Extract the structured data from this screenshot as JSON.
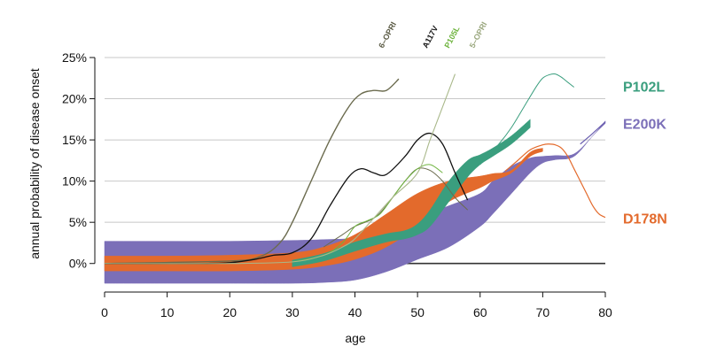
{
  "chart_data": {
    "type": "area",
    "ylabel": "annual probability of disease onset",
    "xlabel": "age",
    "xlim": [
      0,
      80
    ],
    "ylim": [
      -2.5,
      25
    ],
    "x_ticks": [
      0,
      10,
      20,
      30,
      40,
      50,
      60,
      70,
      80
    ],
    "x_tick_labels": [
      "0",
      "10",
      "20",
      "30",
      "40",
      "50",
      "60",
      "70",
      "80"
    ],
    "y_ticks": [
      0,
      5,
      10,
      15,
      20,
      25
    ],
    "y_tick_labels": [
      "0%",
      "5%",
      "10%",
      "15%",
      "20%",
      "25%"
    ],
    "grid": "horizontal",
    "bands": [
      {
        "name": "E200K",
        "color": "#7b6fb8",
        "x": [
          0,
          10,
          20,
          30,
          35,
          40,
          45,
          50,
          55,
          60,
          62,
          65,
          68,
          70,
          72,
          75,
          78,
          80
        ],
        "lower": [
          -2.4,
          -2.4,
          -2.4,
          -2.4,
          -2.3,
          -2.0,
          -1.0,
          0.5,
          2.0,
          4.5,
          6.0,
          8.5,
          11.0,
          12.2,
          12.6,
          13.0,
          15.5,
          17.0
        ],
        "upper": [
          2.7,
          2.7,
          2.7,
          2.8,
          2.9,
          3.1,
          4.0,
          5.5,
          7.0,
          8.5,
          10.0,
          11.8,
          12.8,
          13.0,
          13.1,
          13.3,
          15.5,
          17.3
        ]
      },
      {
        "name": "D178N",
        "color": "#e36a2c",
        "x": [
          0,
          10,
          20,
          30,
          35,
          40,
          45,
          50,
          55,
          60,
          62,
          65,
          68,
          70
        ],
        "lower": [
          -0.9,
          -0.9,
          -0.9,
          -0.7,
          -0.3,
          0.5,
          2.0,
          4.5,
          7.5,
          9.2,
          10.0,
          11.0,
          13.0,
          13.6
        ],
        "upper": [
          0.9,
          0.9,
          1.0,
          1.3,
          2.0,
          3.5,
          6.0,
          8.5,
          10.0,
          10.6,
          10.9,
          11.3,
          13.5,
          14.0
        ]
      },
      {
        "name": "P102L",
        "color": "#3a9e7e",
        "x": [
          30,
          35,
          40,
          45,
          48,
          50,
          52,
          55,
          58,
          60,
          62,
          65,
          68
        ],
        "lower": [
          -0.4,
          0.3,
          1.5,
          2.6,
          3.0,
          3.5,
          4.5,
          7.5,
          10.5,
          12.0,
          13.0,
          14.5,
          16.5
        ],
        "upper": [
          0.4,
          1.2,
          2.6,
          3.6,
          4.0,
          4.8,
          6.5,
          10.0,
          12.5,
          13.2,
          14.0,
          15.5,
          17.5
        ]
      }
    ],
    "lines": [
      {
        "name": "6-OPRI",
        "color": "#6b6b4e",
        "width": 1.4,
        "x": [
          0,
          20,
          25,
          28,
          30,
          33,
          36,
          39,
          41,
          43,
          45,
          47
        ],
        "y": [
          0,
          0.3,
          0.9,
          2.5,
          5.0,
          10.0,
          15.0,
          19.0,
          20.6,
          21.0,
          21.0,
          22.4
        ]
      },
      {
        "name": "6-OPRI (2)",
        "color": "#6b6b4e",
        "width": 1.0,
        "x": [
          35,
          38,
          40,
          43,
          45,
          48,
          50,
          52,
          54,
          56,
          58
        ],
        "y": [
          2.0,
          3.5,
          4.5,
          5.5,
          7.0,
          10.0,
          11.5,
          11.3,
          10.0,
          8.0,
          6.5
        ]
      },
      {
        "name": "A117V",
        "color": "#111111",
        "width": 1.3,
        "x": [
          0,
          15,
          20,
          24,
          27,
          30,
          33,
          36,
          39,
          41,
          43,
          45,
          48,
          50,
          52,
          54,
          56,
          58
        ],
        "y": [
          0,
          0,
          0.1,
          0.5,
          1.0,
          1.3,
          3.0,
          7.0,
          10.5,
          11.5,
          11.0,
          10.8,
          13.0,
          15.0,
          15.8,
          14.5,
          11.0,
          7.7
        ]
      },
      {
        "name": "P105L",
        "color": "#6fb43f",
        "width": 1.0,
        "x": [
          30,
          35,
          38,
          40,
          42,
          44,
          46,
          48,
          50,
          52,
          54
        ],
        "y": [
          0.2,
          1.0,
          2.5,
          4.5,
          5.2,
          6.0,
          8.0,
          10.0,
          11.5,
          12.0,
          11.0
        ]
      },
      {
        "name": "5-OPRI",
        "color": "#a9b88a",
        "width": 1.1,
        "x": [
          0,
          20,
          30,
          35,
          38,
          40,
          43,
          46,
          50,
          52,
          54,
          56
        ],
        "y": [
          0,
          0,
          0.2,
          1.0,
          2.0,
          3.0,
          5.5,
          8.0,
          11.0,
          15.0,
          19.0,
          23.0
        ]
      },
      {
        "name": "P102L",
        "color": "#3a9e7e",
        "width": 1.0,
        "x": [
          60,
          63,
          65,
          67,
          69,
          70,
          71,
          72,
          73,
          74,
          75
        ],
        "y": [
          12.0,
          14.5,
          16.5,
          19.0,
          21.5,
          22.5,
          22.9,
          23.0,
          22.6,
          22.0,
          21.4
        ]
      },
      {
        "name": "D178N",
        "color": "#e36a2c",
        "width": 1.2,
        "x": [
          64,
          66,
          68,
          70,
          71,
          72,
          73,
          74,
          75,
          76,
          77,
          78,
          79,
          80
        ],
        "y": [
          11.2,
          12.5,
          13.8,
          14.4,
          14.5,
          14.4,
          14.0,
          13.0,
          11.5,
          10.0,
          8.5,
          7.0,
          6.0,
          5.6
        ]
      },
      {
        "name": "E200K",
        "color": "#6a5eb0",
        "width": 1.2,
        "x": [
          76,
          78,
          80
        ],
        "y": [
          14.5,
          15.8,
          17.2
        ]
      }
    ],
    "zero_line": 0,
    "labels": [
      {
        "text": "6–OPRI",
        "color": "#5b5b45",
        "anchor_x": 44.5
      },
      {
        "text": "A117V",
        "color": "#111111",
        "anchor_x": 51.5
      },
      {
        "text": "P105L",
        "color": "#6fb43f",
        "anchor_x": 55
      },
      {
        "text": "5–OPRI",
        "color": "#9aa77e",
        "anchor_x": 59
      }
    ],
    "right_labels": [
      {
        "text": "P102L",
        "color": "#3a9e7e",
        "y": 21.5
      },
      {
        "text": "E200K",
        "color": "#7b6fb8",
        "y": 17.0
      },
      {
        "text": "D178N",
        "color": "#e36a2c",
        "y": 5.5
      }
    ]
  }
}
